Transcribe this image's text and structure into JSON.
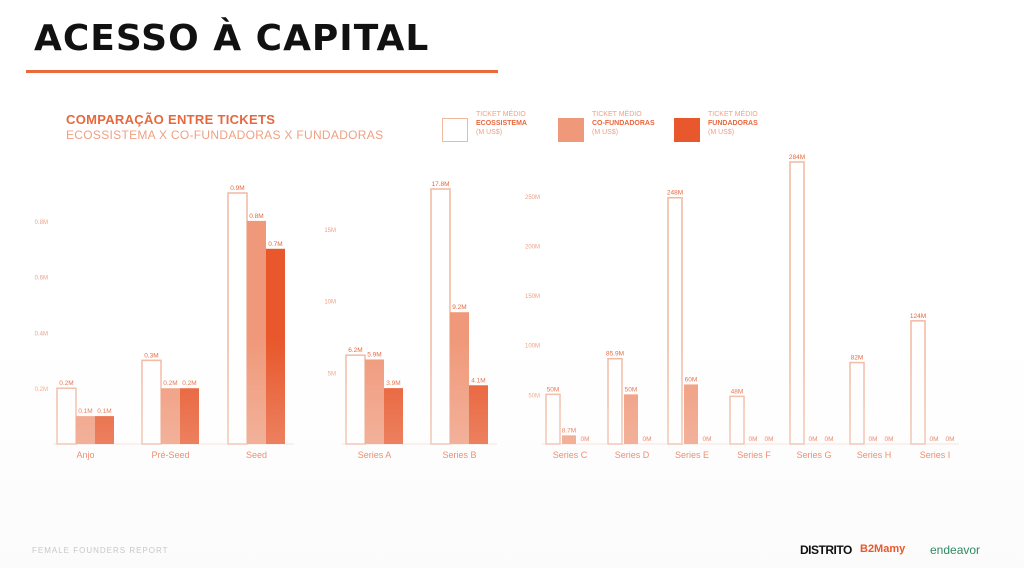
{
  "page": {
    "title": "ACESSO À CAPITAL",
    "subtitle_line1": "COMPARAÇÃO ENTRE TICKETS",
    "subtitle_line2": "ECOSSISTEMA X CO-FUNDADORAS X FUNDADORAS",
    "footer_left": "FEMALE FOUNDERS REPORT"
  },
  "legend": [
    {
      "line1": "TICKET MÉDIO",
      "line2": "ECOSSISTEMA",
      "line3": "(M US$)",
      "style": "outline"
    },
    {
      "line1": "TICKET MÉDIO",
      "line2": "CO-FUNDADORAS",
      "line3": "(M US$)",
      "style": "light"
    },
    {
      "line1": "TICKET MÉDIO",
      "line2": "FUNDADORAS",
      "line3": "(M US$)",
      "style": "dark"
    }
  ],
  "logos": {
    "distrito": "DISTRITO",
    "b2mamy": "B2Mamy",
    "endeavor": "endeavor"
  },
  "colors": {
    "accent": "#ea6a3a",
    "outline": "#f1b8a0",
    "light": "#f0997a",
    "dark": "#e8582c"
  },
  "chart_data": [
    {
      "type": "bar",
      "categories": [
        "Anjo",
        "Pré-Seed",
        "Seed"
      ],
      "series": [
        {
          "values": [
            0.2,
            0.3,
            0.9
          ]
        },
        {
          "values": [
            0.1,
            0.2,
            0.8
          ]
        },
        {
          "values": [
            0.1,
            0.2,
            0.7
          ]
        }
      ],
      "data_labels": [
        [
          "0.2M",
          "0.3M",
          "0.9M"
        ],
        [
          "0.1M",
          "0.2M",
          "0.8M"
        ],
        [
          "0.1M",
          "0.2M",
          "0.7M"
        ]
      ],
      "yticks": [
        0.2,
        0.4,
        0.6,
        0.8
      ],
      "ytick_labels": [
        "0.2M",
        "0.4M",
        "0.6M",
        "0.8M"
      ],
      "ylim": [
        0,
        0.9
      ]
    },
    {
      "type": "bar",
      "categories": [
        "Series A",
        "Series B"
      ],
      "series": [
        {
          "values": [
            6.2,
            17.8
          ]
        },
        {
          "values": [
            5.9,
            9.2
          ]
        },
        {
          "values": [
            3.9,
            4.1
          ]
        }
      ],
      "data_labels": [
        [
          "6.2M",
          "17.8M"
        ],
        [
          "5.9M",
          "9.2M"
        ],
        [
          "3.9M",
          "4.1M"
        ]
      ],
      "yticks": [
        5,
        10,
        15
      ],
      "ytick_labels": [
        "5M",
        "10M",
        "15M"
      ],
      "ylim": [
        0,
        17.8
      ]
    },
    {
      "type": "bar",
      "categories": [
        "Series C",
        "Series D",
        "Series E",
        "Series F",
        "Series G",
        "Series H",
        "Series I"
      ],
      "series": [
        {
          "values": [
            50,
            85.9,
            248,
            48,
            284,
            82,
            124
          ]
        },
        {
          "values": [
            8.7,
            50,
            60,
            0,
            0,
            0,
            0
          ]
        },
        {
          "values": [
            0,
            0,
            0,
            0,
            0,
            0,
            0
          ]
        }
      ],
      "data_labels": [
        [
          "50M",
          "85.9M",
          "248M",
          "48M",
          "284M",
          "82M",
          "124M"
        ],
        [
          "8.7M",
          "50M",
          "60M",
          "0M",
          "0M",
          "0M",
          "0M"
        ],
        [
          "0M",
          "0M",
          "0M",
          "0M",
          "0M",
          "0M",
          "0M"
        ]
      ],
      "yticks": [
        50,
        100,
        150,
        200,
        250
      ],
      "ytick_labels": [
        "50M",
        "100M",
        "150M",
        "200M",
        "250M"
      ],
      "ylim": [
        0,
        284
      ]
    }
  ]
}
